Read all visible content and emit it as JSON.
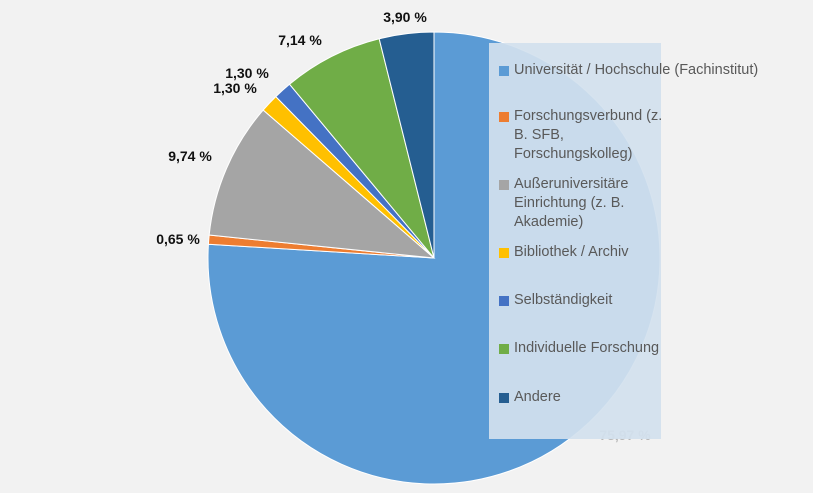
{
  "chart_data": {
    "type": "pie",
    "title": "",
    "slices": [
      {
        "label": "Universität / Hochschule (Fachinstitut)",
        "value": 75.97,
        "display": "75,97 %",
        "color": "#5b9bd5"
      },
      {
        "label": "Forschungsverbund (z. B. SFB, Forschungskolleg)",
        "value": 0.65,
        "display": "0,65 %",
        "color": "#ed7d31"
      },
      {
        "label": "Außeruniversitäre Einrichtung (z. B. Akademie)",
        "value": 9.74,
        "display": "9,74 %",
        "color": "#a5a5a5"
      },
      {
        "label": "Bibliothek / Archiv",
        "value": 1.3,
        "display": "1,30 %",
        "color": "#ffc000"
      },
      {
        "label": "Selbständigkeit",
        "value": 1.3,
        "display": "1,30 %",
        "color": "#4472c4"
      },
      {
        "label": "Individuelle Forschung",
        "value": 7.14,
        "display": "7,14 %",
        "color": "#70ad47"
      },
      {
        "label": "Andere",
        "value": 3.9,
        "display": "3,90 %",
        "color": "#255e91"
      }
    ],
    "legend": {
      "position": "right"
    },
    "start_angle_deg": 0,
    "direction": "clockwise"
  }
}
